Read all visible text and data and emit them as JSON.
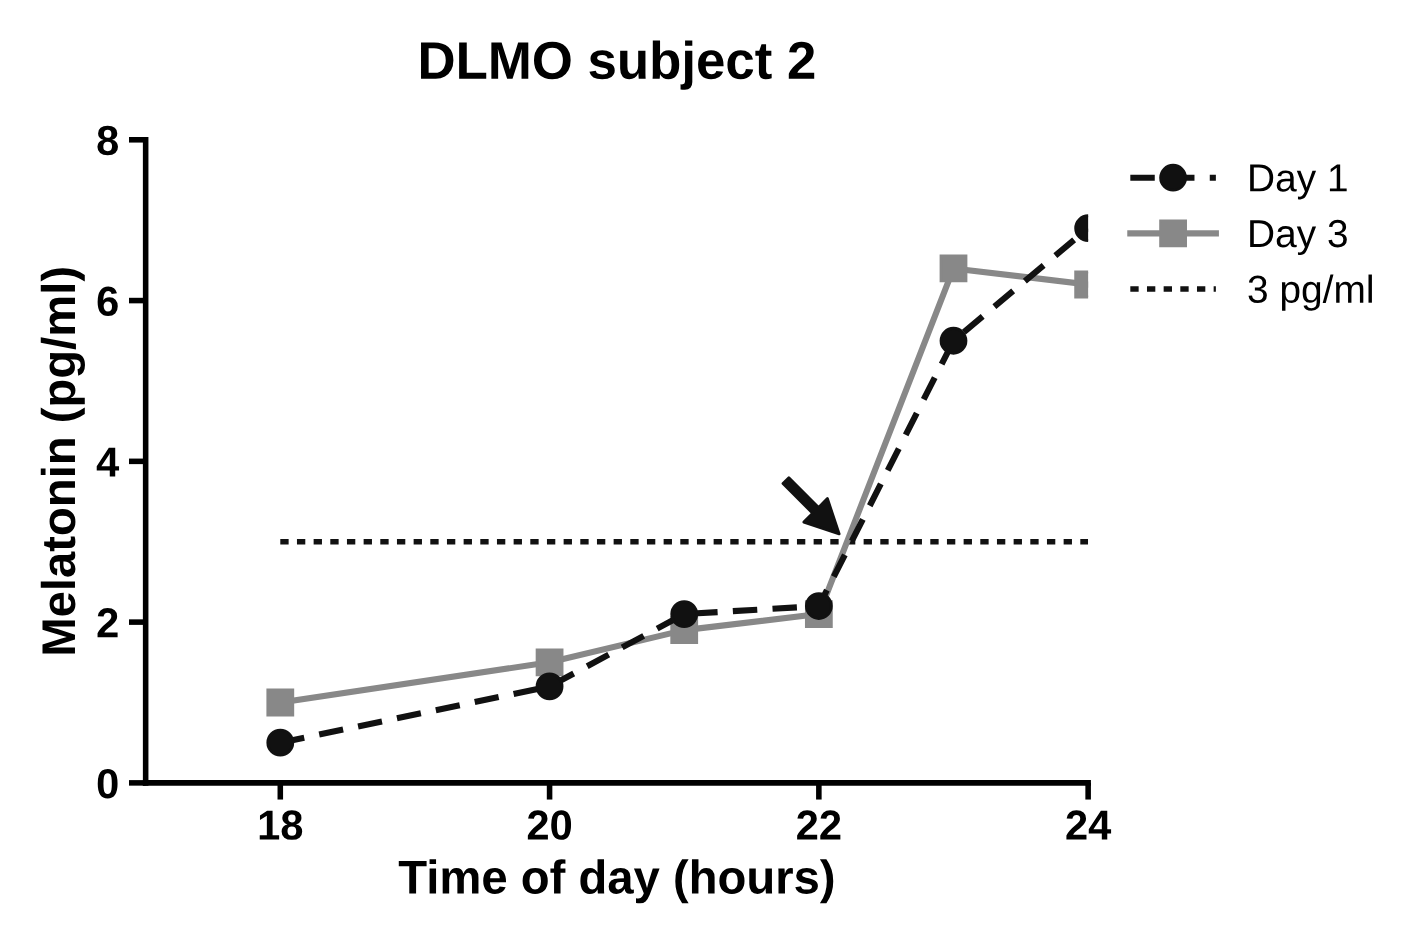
{
  "chart_data": {
    "type": "line",
    "title": "DLMO subject 2",
    "xlabel": "Time of day (hours)",
    "ylabel": "Melatonin (pg/ml)",
    "series": [
      {
        "name": "Day 1",
        "color": "#111111",
        "x": [
          18,
          20,
          21,
          22,
          23,
          24
        ],
        "values": [
          0.5,
          1.2,
          2.1,
          2.2,
          5.5,
          6.9
        ],
        "marker": "circle",
        "line_style": "dashed"
      },
      {
        "name": "Day 3",
        "color": "#888888",
        "x": [
          18,
          20,
          21,
          22,
          23,
          24
        ],
        "values": [
          1.0,
          1.5,
          1.9,
          2.1,
          6.4,
          6.2
        ],
        "marker": "square",
        "line_style": "solid"
      }
    ],
    "ref_lines": [
      {
        "axis": "y",
        "value": 3,
        "label": "3 pg/ml",
        "color": "#111111",
        "line_style": "dotted"
      }
    ],
    "xlim": [
      17,
      24
    ],
    "xticks": [
      18,
      20,
      22,
      24
    ],
    "ylim": [
      0,
      8
    ],
    "yticks": [
      0,
      2,
      4,
      6,
      8
    ],
    "grid": false,
    "legend": "top right"
  }
}
